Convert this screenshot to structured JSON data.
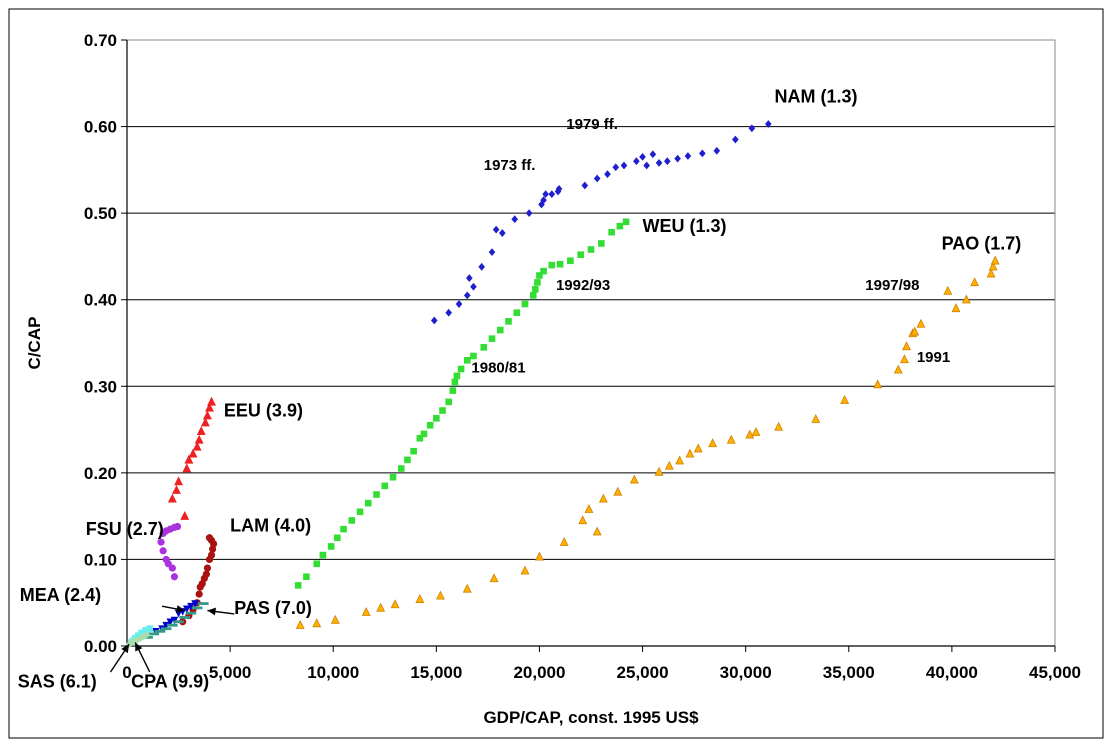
{
  "chart_data": {
    "type": "scatter",
    "xlabel": "GDP/CAP, const. 1995 US$",
    "ylabel": "C/CAP",
    "xlim": [
      0,
      45000
    ],
    "ylim": [
      0,
      0.7
    ],
    "x_ticks": [
      "0",
      "5,000",
      "10,000",
      "15,000",
      "20,000",
      "25,000",
      "30,000",
      "35,000",
      "40,000",
      "45,000"
    ],
    "y_ticks": [
      "0.00",
      "0.10",
      "0.20",
      "0.30",
      "0.40",
      "0.50",
      "0.60",
      "0.70"
    ],
    "grid": "horizontal",
    "series": [
      {
        "name": "NAM (1.3)",
        "marker": "diamond",
        "color": "#1f1fcf",
        "points": [
          [
            14900,
            0.376
          ],
          [
            15600,
            0.385
          ],
          [
            16100,
            0.395
          ],
          [
            16500,
            0.405
          ],
          [
            16800,
            0.415
          ],
          [
            16600,
            0.425
          ],
          [
            17200,
            0.438
          ],
          [
            17700,
            0.455
          ],
          [
            17900,
            0.481
          ],
          [
            18200,
            0.477
          ],
          [
            18800,
            0.493
          ],
          [
            19500,
            0.5
          ],
          [
            20100,
            0.51
          ],
          [
            20200,
            0.515
          ],
          [
            20300,
            0.522
          ],
          [
            20600,
            0.522
          ],
          [
            20900,
            0.525
          ],
          [
            20950,
            0.528
          ],
          [
            22200,
            0.532
          ],
          [
            22800,
            0.54
          ],
          [
            23300,
            0.545
          ],
          [
            23700,
            0.553
          ],
          [
            24100,
            0.555
          ],
          [
            24700,
            0.56
          ],
          [
            25000,
            0.565
          ],
          [
            25200,
            0.555
          ],
          [
            25500,
            0.568
          ],
          [
            25800,
            0.558
          ],
          [
            26200,
            0.56
          ],
          [
            26700,
            0.563
          ],
          [
            27200,
            0.566
          ],
          [
            27900,
            0.569
          ],
          [
            28600,
            0.572
          ],
          [
            29500,
            0.585
          ],
          [
            30300,
            0.598
          ],
          [
            31100,
            0.603
          ]
        ]
      },
      {
        "name": "WEU (1.3)",
        "marker": "square",
        "color": "#33dd33",
        "points": [
          [
            8300,
            0.07
          ],
          [
            8700,
            0.08
          ],
          [
            9200,
            0.095
          ],
          [
            9500,
            0.105
          ],
          [
            9900,
            0.115
          ],
          [
            10200,
            0.125
          ],
          [
            10500,
            0.135
          ],
          [
            10900,
            0.145
          ],
          [
            11300,
            0.155
          ],
          [
            11700,
            0.165
          ],
          [
            12100,
            0.175
          ],
          [
            12500,
            0.185
          ],
          [
            12900,
            0.195
          ],
          [
            13300,
            0.205
          ],
          [
            13600,
            0.215
          ],
          [
            13900,
            0.225
          ],
          [
            14200,
            0.24
          ],
          [
            14400,
            0.245
          ],
          [
            14700,
            0.255
          ],
          [
            15000,
            0.263
          ],
          [
            15300,
            0.272
          ],
          [
            15600,
            0.282
          ],
          [
            15800,
            0.295
          ],
          [
            15900,
            0.305
          ],
          [
            16000,
            0.312
          ],
          [
            16200,
            0.32
          ],
          [
            16500,
            0.33
          ],
          [
            16800,
            0.335
          ],
          [
            17300,
            0.345
          ],
          [
            17700,
            0.355
          ],
          [
            18100,
            0.365
          ],
          [
            18500,
            0.375
          ],
          [
            18900,
            0.385
          ],
          [
            19300,
            0.395
          ],
          [
            19700,
            0.405
          ],
          [
            19800,
            0.412
          ],
          [
            19900,
            0.42
          ],
          [
            20000,
            0.428
          ],
          [
            20200,
            0.433
          ],
          [
            20600,
            0.44
          ],
          [
            21000,
            0.441
          ],
          [
            21500,
            0.445
          ],
          [
            22000,
            0.452
          ],
          [
            22500,
            0.458
          ],
          [
            23000,
            0.465
          ],
          [
            23500,
            0.478
          ],
          [
            23900,
            0.485
          ],
          [
            24200,
            0.49
          ]
        ]
      },
      {
        "name": "PAO (1.7)",
        "marker": "triangle",
        "color": "#ffb000",
        "points": [
          [
            8400,
            0.024
          ],
          [
            9200,
            0.026
          ],
          [
            10100,
            0.03
          ],
          [
            11600,
            0.039
          ],
          [
            12300,
            0.044
          ],
          [
            13000,
            0.048
          ],
          [
            14200,
            0.054
          ],
          [
            15200,
            0.058
          ],
          [
            16500,
            0.066
          ],
          [
            17800,
            0.078
          ],
          [
            19300,
            0.087
          ],
          [
            20000,
            0.103
          ],
          [
            21200,
            0.12
          ],
          [
            22100,
            0.145
          ],
          [
            22400,
            0.158
          ],
          [
            22800,
            0.132
          ],
          [
            23100,
            0.17
          ],
          [
            23800,
            0.178
          ],
          [
            24600,
            0.192
          ],
          [
            25800,
            0.201
          ],
          [
            26300,
            0.208
          ],
          [
            26800,
            0.214
          ],
          [
            27300,
            0.222
          ],
          [
            27700,
            0.228
          ],
          [
            28400,
            0.234
          ],
          [
            29300,
            0.238
          ],
          [
            30200,
            0.244
          ],
          [
            30500,
            0.247
          ],
          [
            31600,
            0.253
          ],
          [
            33400,
            0.262
          ],
          [
            34800,
            0.284
          ],
          [
            36400,
            0.302
          ],
          [
            37400,
            0.319
          ],
          [
            37700,
            0.331
          ],
          [
            37800,
            0.346
          ],
          [
            38100,
            0.361
          ],
          [
            38200,
            0.363
          ],
          [
            38500,
            0.372
          ],
          [
            39800,
            0.41
          ],
          [
            40200,
            0.39
          ],
          [
            40700,
            0.4
          ],
          [
            41100,
            0.42
          ],
          [
            41900,
            0.43
          ],
          [
            42000,
            0.438
          ],
          [
            42100,
            0.445
          ]
        ]
      },
      {
        "name": "EEU (3.9)",
        "marker": "triangle",
        "color": "#ee2222",
        "points": [
          [
            2200,
            0.17
          ],
          [
            2400,
            0.18
          ],
          [
            2500,
            0.19
          ],
          [
            2800,
            0.15
          ],
          [
            2900,
            0.205
          ],
          [
            3000,
            0.215
          ],
          [
            3200,
            0.222
          ],
          [
            3400,
            0.23
          ],
          [
            3500,
            0.238
          ],
          [
            3600,
            0.248
          ],
          [
            3800,
            0.258
          ],
          [
            3900,
            0.266
          ],
          [
            4000,
            0.275
          ],
          [
            4100,
            0.282
          ]
        ]
      },
      {
        "name": "FSU (2.7)",
        "marker": "circle",
        "color": "#aa33dd",
        "points": [
          [
            2300,
            0.08
          ],
          [
            2200,
            0.09
          ],
          [
            2000,
            0.095
          ],
          [
            1900,
            0.1
          ],
          [
            1750,
            0.11
          ],
          [
            1650,
            0.12
          ],
          [
            1750,
            0.13
          ],
          [
            1900,
            0.133
          ],
          [
            2100,
            0.135
          ],
          [
            2300,
            0.137
          ],
          [
            2450,
            0.138
          ]
        ]
      },
      {
        "name": "LAM (4.0)",
        "marker": "circle",
        "color": "#aa1111",
        "points": [
          [
            2700,
            0.028
          ],
          [
            3000,
            0.035
          ],
          [
            3200,
            0.042
          ],
          [
            3400,
            0.05
          ],
          [
            3500,
            0.06
          ],
          [
            3550,
            0.068
          ],
          [
            3650,
            0.072
          ],
          [
            3750,
            0.078
          ],
          [
            3850,
            0.083
          ],
          [
            3900,
            0.09
          ],
          [
            4000,
            0.1
          ],
          [
            4100,
            0.105
          ],
          [
            4150,
            0.112
          ],
          [
            4200,
            0.118
          ],
          [
            4100,
            0.122
          ],
          [
            4000,
            0.125
          ]
        ]
      },
      {
        "name": "MEA (2.4)",
        "marker": "triangle-down",
        "color": "#0000cc",
        "points": [
          [
            1400,
            0.017
          ],
          [
            1700,
            0.02
          ],
          [
            1900,
            0.024
          ],
          [
            2100,
            0.028
          ],
          [
            2300,
            0.03
          ],
          [
            2500,
            0.038
          ],
          [
            2700,
            0.04
          ],
          [
            2900,
            0.043
          ],
          [
            3100,
            0.046
          ],
          [
            3300,
            0.049
          ]
        ]
      },
      {
        "name": "PAS (7.0)",
        "marker": "dash",
        "color": "#339988",
        "points": [
          [
            1000,
            0.01
          ],
          [
            1300,
            0.014
          ],
          [
            1600,
            0.017
          ],
          [
            1900,
            0.02
          ],
          [
            2200,
            0.024
          ],
          [
            2500,
            0.028
          ],
          [
            2800,
            0.033
          ],
          [
            3100,
            0.038
          ],
          [
            3400,
            0.044
          ],
          [
            3700,
            0.049
          ]
        ]
      },
      {
        "name": "SAS (6.1)",
        "marker": "square",
        "color": "#66eeee",
        "points": [
          [
            200,
            0.004
          ],
          [
            300,
            0.006
          ],
          [
            400,
            0.009
          ],
          [
            550,
            0.012
          ],
          [
            700,
            0.015
          ],
          [
            900,
            0.018
          ],
          [
            1100,
            0.02
          ]
        ]
      },
      {
        "name": "CPA (9.9)",
        "marker": "diamond",
        "color": "#aaddaa",
        "points": [
          [
            100,
            0.002
          ],
          [
            150,
            0.003
          ],
          [
            200,
            0.004
          ],
          [
            300,
            0.005
          ],
          [
            400,
            0.006
          ],
          [
            500,
            0.007
          ],
          [
            650,
            0.009
          ],
          [
            800,
            0.011
          ],
          [
            950,
            0.013
          ]
        ]
      }
    ],
    "annotations": [
      {
        "text": "1973 ff.",
        "x": 17300,
        "y": 0.55
      },
      {
        "text": "1979 ff.",
        "x": 21300,
        "y": 0.597
      },
      {
        "text": "1992/93",
        "x": 20800,
        "y": 0.411
      },
      {
        "text": "1980/81",
        "x": 16700,
        "y": 0.316
      },
      {
        "text": "1997/98",
        "x": 35800,
        "y": 0.411
      },
      {
        "text": "1991",
        "x": 38300,
        "y": 0.328
      }
    ],
    "region_labels": [
      {
        "text": "NAM (1.3)",
        "x": 31400,
        "y": 0.628
      },
      {
        "text": "WEU (1.3)",
        "x": 25000,
        "y": 0.478
      },
      {
        "text": "PAO (1.7)",
        "x": 39500,
        "y": 0.458
      },
      {
        "text": "EEU (3.9)",
        "x": 4700,
        "y": 0.265
      },
      {
        "text": "FSU (2.7)",
        "x": -2000,
        "y": 0.128
      },
      {
        "text": "LAM (4.0)",
        "x": 5000,
        "y": 0.132
      },
      {
        "text": "MEA (2.4)",
        "x": -5200,
        "y": 0.052
      },
      {
        "text": "PAS (7.0)",
        "x": 5200,
        "y": 0.037
      },
      {
        "text": "SAS (6.1)",
        "x": -5300,
        "y": -0.048
      },
      {
        "text": "CPA (9.9)",
        "x": 200,
        "y": -0.048
      }
    ],
    "arrows": [
      {
        "from": [
          1700,
          0.046
        ],
        "to": [
          2800,
          0.041
        ]
      },
      {
        "from": [
          5200,
          0.037
        ],
        "to": [
          3900,
          0.041
        ]
      },
      {
        "from": [
          -800,
          -0.03
        ],
        "to": [
          100,
          0.002
        ]
      },
      {
        "from": [
          1100,
          -0.03
        ],
        "to": [
          400,
          0.004
        ]
      }
    ]
  }
}
